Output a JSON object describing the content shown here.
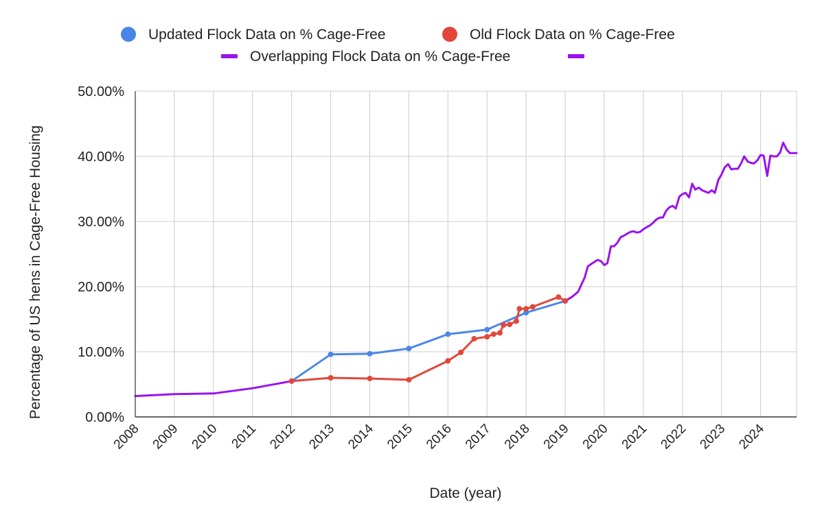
{
  "chart_data": {
    "type": "line",
    "title": "",
    "xlabel": "Date (year)",
    "ylabel": "Percentage of US hens in Cage-Free Housing",
    "xlim": [
      2008,
      2024.92
    ],
    "ylim": [
      0,
      50
    ],
    "y_ticks": [
      0,
      10,
      20,
      30,
      40,
      50
    ],
    "y_tick_labels": [
      "0.00%",
      "10.00%",
      "20.00%",
      "30.00%",
      "40.00%",
      "50.00%"
    ],
    "x_ticks": [
      2008,
      2009,
      2010,
      2011,
      2012,
      2013,
      2014,
      2015,
      2016,
      2017,
      2018,
      2019,
      2020,
      2021,
      2022,
      2023,
      2024
    ],
    "x_tick_labels": [
      "2008",
      "2009",
      "2010",
      "2011",
      "2012",
      "2013",
      "2014",
      "2015",
      "2016",
      "2017",
      "2018",
      "2019",
      "2020",
      "2021",
      "2022",
      "2023",
      "2024"
    ],
    "grid": true,
    "legend_position": "top",
    "legend": [
      {
        "label": "Updated Flock Data on % Cage-Free",
        "symbol": "circle",
        "color": "#4a86e8"
      },
      {
        "label": "Old Flock Data on % Cage-Free",
        "symbol": "circle",
        "color": "#e2473a"
      },
      {
        "label": "Overlapping Flock Data on % Cage-Free",
        "symbol": "line",
        "color": "#9a12ee"
      },
      {
        "label": "",
        "symbol": "line",
        "color": "#9a12ee"
      }
    ],
    "series": [
      {
        "name": "Updated Flock Data on % Cage-Free",
        "color": "#4a86e8",
        "markers": true,
        "x": [
          2012.0,
          2013.0,
          2014.0,
          2015.0,
          2016.0,
          2017.0,
          2018.0,
          2019.0
        ],
        "y": [
          5.5,
          9.6,
          9.7,
          10.5,
          12.7,
          13.4,
          16.0,
          17.8
        ]
      },
      {
        "name": "Old Flock Data on % Cage-Free",
        "color": "#e2473a",
        "markers": true,
        "x": [
          2012.0,
          2013.0,
          2014.0,
          2015.0,
          2016.0,
          2016.33,
          2016.67,
          2017.0,
          2017.17,
          2017.33,
          2017.42,
          2017.58,
          2017.75,
          2017.83,
          2018.0,
          2018.17,
          2018.83,
          2019.0
        ],
        "y": [
          5.5,
          6.0,
          5.9,
          5.7,
          8.6,
          9.9,
          12.0,
          12.3,
          12.7,
          12.9,
          14.1,
          14.2,
          14.7,
          16.6,
          16.6,
          16.9,
          18.4,
          17.8
        ]
      },
      {
        "name": "Overlapping Flock Data on % Cage-Free",
        "color": "#9a12ee",
        "markers": false,
        "x": [
          2008.0,
          2009.0,
          2010.0,
          2011.0,
          2012.0
        ],
        "y": [
          3.2,
          3.5,
          3.6,
          4.4,
          5.5
        ]
      },
      {
        "name": "Overlapping Flock Data on % Cage-Free",
        "color": "#9a12ee",
        "markers": false,
        "x": [
          2019.0,
          2019.17,
          2019.33,
          2019.5,
          2019.58,
          2019.67,
          2019.83,
          2019.92,
          2020.0,
          2020.08,
          2020.17,
          2020.25,
          2020.33,
          2020.42,
          2020.5,
          2020.58,
          2020.67,
          2020.75,
          2020.83,
          2020.92,
          2021.0,
          2021.08,
          2021.17,
          2021.25,
          2021.33,
          2021.42,
          2021.5,
          2021.58,
          2021.67,
          2021.75,
          2021.83,
          2021.92,
          2022.0,
          2022.08,
          2022.17,
          2022.25,
          2022.33,
          2022.42,
          2022.5,
          2022.58,
          2022.67,
          2022.75,
          2022.83,
          2022.92,
          2023.0,
          2023.08,
          2023.17,
          2023.25,
          2023.33,
          2023.42,
          2023.5,
          2023.58,
          2023.67,
          2023.75,
          2023.83,
          2023.92,
          2024.0,
          2024.08,
          2024.17,
          2024.25,
          2024.33,
          2024.42,
          2024.5,
          2024.58,
          2024.67,
          2024.75,
          2024.83,
          2024.92
        ],
        "y": [
          17.8,
          18.4,
          19.2,
          21.4,
          23.1,
          23.5,
          24.1,
          23.9,
          23.3,
          23.6,
          26.2,
          26.2,
          26.7,
          27.6,
          27.8,
          28.1,
          28.4,
          28.5,
          28.3,
          28.4,
          28.8,
          29.1,
          29.4,
          29.8,
          30.3,
          30.6,
          30.6,
          31.6,
          32.2,
          32.4,
          32.0,
          33.8,
          34.2,
          34.4,
          33.7,
          35.8,
          34.9,
          35.2,
          34.8,
          34.6,
          34.4,
          34.8,
          34.4,
          36.4,
          37.2,
          38.3,
          38.8,
          38.0,
          38.1,
          38.1,
          38.9,
          40.0,
          39.2,
          39.0,
          38.9,
          39.4,
          40.2,
          40.1,
          37.0,
          40.1,
          40.0,
          40.0,
          40.6,
          42.1,
          41.0,
          40.5,
          40.5,
          40.5
        ]
      }
    ]
  }
}
